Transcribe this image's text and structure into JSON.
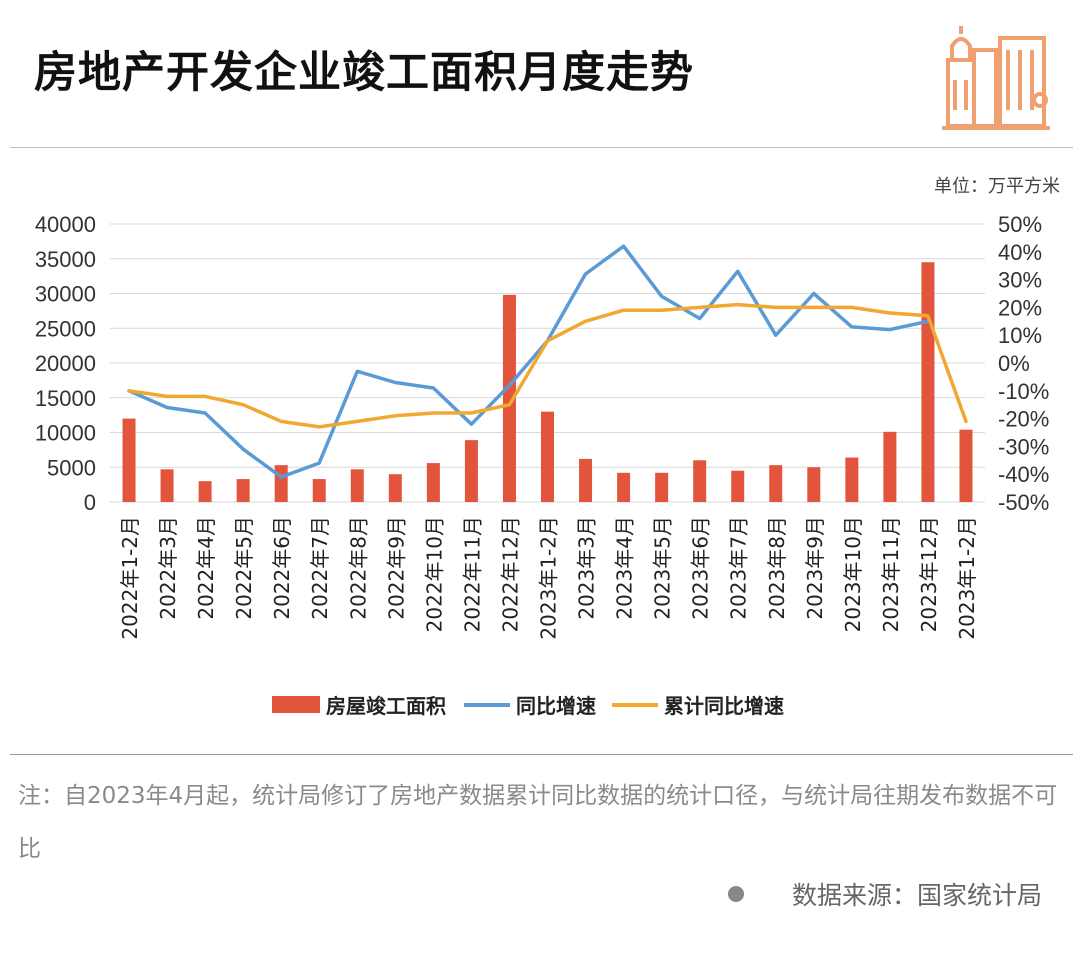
{
  "title": "房地产开发企业竣工面积月度走势",
  "unit_label": "单位：万平方米",
  "note": "注：自2023年4月起，统计局修订了房地产数据累计同比数据的统计口径，与统计局往期发布数据不可比",
  "source": "数据来源：国家统计局",
  "chart_data": {
    "type": "bar",
    "categories": [
      "2022年1-2月",
      "2022年3月",
      "2022年4月",
      "2022年5月",
      "2022年6月",
      "2022年7月",
      "2022年8月",
      "2022年9月",
      "2022年10月",
      "2022年11月",
      "2022年12月",
      "2023年1-2月",
      "2023年3月",
      "2023年4月",
      "2023年5月",
      "2023年6月",
      "2023年7月",
      "2023年8月",
      "2023年9月",
      "2023年10月",
      "2023年11月",
      "2023年12月",
      "2023年1-2月"
    ],
    "series": [
      {
        "name": "房屋竣工面积",
        "kind": "bar",
        "axis": "left",
        "color": "#e2553c",
        "values": [
          12000,
          4700,
          3000,
          3300,
          5300,
          3300,
          4700,
          4000,
          5600,
          8900,
          29800,
          13000,
          6200,
          4200,
          4200,
          6000,
          4500,
          5300,
          5000,
          6400,
          10100,
          34500,
          10400
        ]
      },
      {
        "name": "同比增速",
        "kind": "line",
        "axis": "right",
        "color": "#5b9bd5",
        "values": [
          -10,
          -16,
          -18,
          -31,
          -41,
          -36,
          -3,
          -7,
          -9,
          -22,
          -8,
          8,
          32,
          42,
          24,
          16,
          33,
          10,
          25,
          13,
          12,
          15,
          null
        ]
      },
      {
        "name": "累计同比增速",
        "kind": "line",
        "axis": "right",
        "color": "#f0a830",
        "values": [
          -10,
          -12,
          -12,
          -15,
          -21,
          -23,
          -21,
          -19,
          -18,
          -18,
          -15,
          8,
          15,
          19,
          19,
          20,
          21,
          20,
          20,
          20,
          18,
          17,
          -21
        ]
      }
    ],
    "y_left": {
      "min": 0,
      "max": 40000,
      "ticks": [
        0,
        5000,
        10000,
        15000,
        20000,
        25000,
        30000,
        35000,
        40000
      ]
    },
    "y_right": {
      "min": -50,
      "max": 50,
      "ticks": [
        "-50%",
        "-40%",
        "-30%",
        "-20%",
        "-10%",
        "0%",
        "10%",
        "20%",
        "30%",
        "40%",
        "50%"
      ]
    },
    "grid": true,
    "legend_position": "bottom"
  }
}
